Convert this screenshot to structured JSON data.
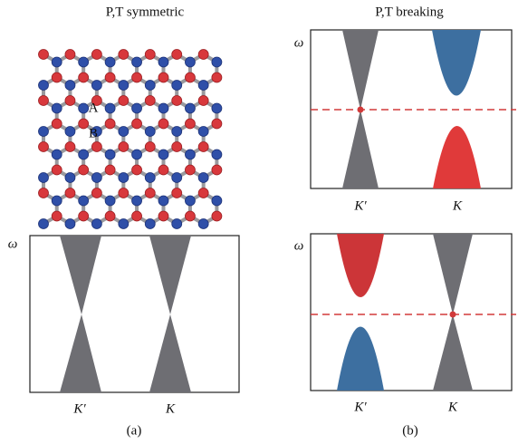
{
  "panels": {
    "a": {
      "title": "P,T symmetric",
      "atom_labels": [
        "A",
        "B"
      ],
      "axis_label": "ω",
      "k_labels": [
        "K′",
        "K"
      ],
      "caption": "(a)"
    },
    "b": {
      "title": "P,T breaking",
      "axis_labels": [
        "ω",
        "ω"
      ],
      "k_labels_top": [
        "K′",
        "K"
      ],
      "k_labels_bottom": [
        "K′",
        "K"
      ],
      "caption": "(b)"
    }
  }
}
